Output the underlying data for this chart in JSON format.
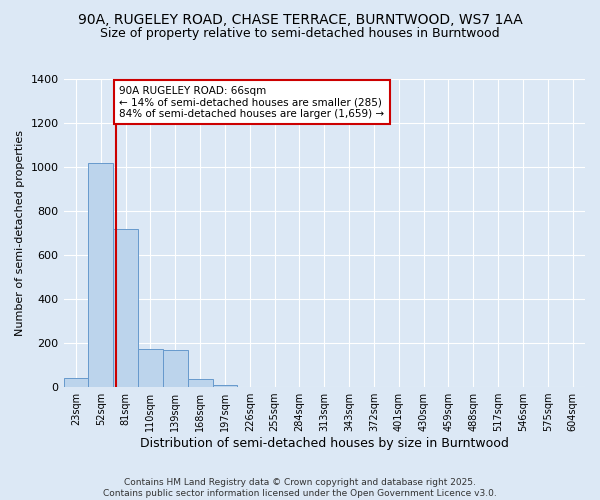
{
  "title1": "90A, RUGELEY ROAD, CHASE TERRACE, BURNTWOOD, WS7 1AA",
  "title2": "Size of property relative to semi-detached houses in Burntwood",
  "xlabel": "Distribution of semi-detached houses by size in Burntwood",
  "ylabel": "Number of semi-detached properties",
  "bar_labels": [
    "23sqm",
    "52sqm",
    "81sqm",
    "110sqm",
    "139sqm",
    "168sqm",
    "197sqm",
    "226sqm",
    "255sqm",
    "284sqm",
    "313sqm",
    "343sqm",
    "372sqm",
    "401sqm",
    "430sqm",
    "459sqm",
    "488sqm",
    "517sqm",
    "546sqm",
    "575sqm",
    "604sqm"
  ],
  "bar_values": [
    40,
    1020,
    720,
    175,
    170,
    35,
    10,
    0,
    0,
    0,
    0,
    0,
    0,
    0,
    0,
    0,
    0,
    0,
    0,
    0,
    0
  ],
  "bar_color": "#bcd4ec",
  "bar_edge_color": "#6699cc",
  "red_line_x": 1.62,
  "annotation_line1": "90A RUGELEY ROAD: 66sqm",
  "annotation_line2": "← 14% of semi-detached houses are smaller (285)",
  "annotation_line3": "84% of semi-detached houses are larger (1,659) →",
  "annotation_box_color": "#ffffff",
  "annotation_box_edge": "#cc0000",
  "ylim": [
    0,
    1400
  ],
  "yticks": [
    0,
    200,
    400,
    600,
    800,
    1000,
    1200,
    1400
  ],
  "bg_color": "#dce8f5",
  "footer_text": "Contains HM Land Registry data © Crown copyright and database right 2025.\nContains public sector information licensed under the Open Government Licence v3.0.",
  "red_line_color": "#cc0000",
  "title_fontsize": 10,
  "subtitle_fontsize": 9
}
